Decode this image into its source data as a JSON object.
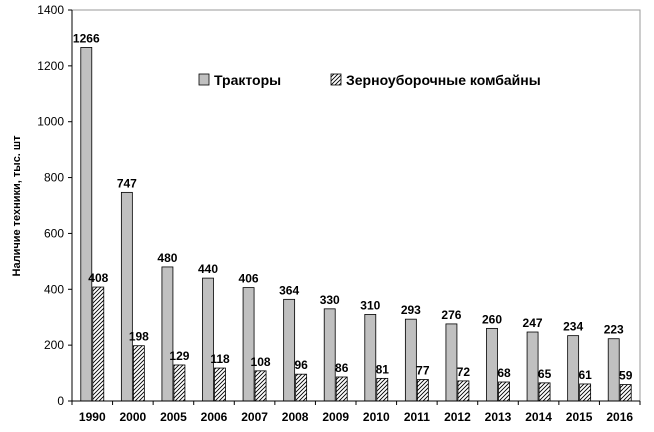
{
  "chart_data": {
    "type": "bar",
    "title": "",
    "xlabel": "",
    "ylabel": "Наличие техники, тыс. шт",
    "ylim": [
      0,
      1400
    ],
    "yticks": [
      0,
      200,
      400,
      600,
      800,
      1000,
      1200,
      1400
    ],
    "grid": false,
    "legend_position": "top-center",
    "categories": [
      "1990",
      "2000",
      "2005",
      "2006",
      "2007",
      "2008",
      "2009",
      "2010",
      "2011",
      "2012",
      "2013",
      "2014",
      "2015",
      "2016"
    ],
    "series": [
      {
        "name": "Тракторы",
        "fill": "#c0c0c0",
        "pattern": "solid",
        "values": [
          1266,
          747,
          480,
          440,
          406,
          364,
          330,
          310,
          293,
          276,
          260,
          247,
          234,
          223
        ]
      },
      {
        "name": "Зерноуборочные комбайны",
        "fill": "#ffffff",
        "pattern": "diagonal-hatch",
        "values": [
          408,
          198,
          129,
          118,
          108,
          96,
          86,
          81,
          77,
          72,
          68,
          65,
          61,
          59
        ]
      }
    ]
  }
}
